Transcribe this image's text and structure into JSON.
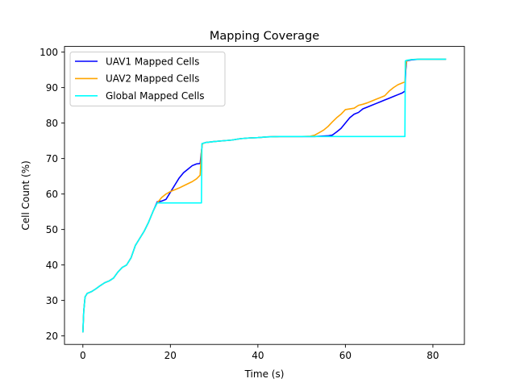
{
  "chart_data": {
    "type": "line",
    "title": "Mapping Coverage",
    "xlabel": "Time (s)",
    "ylabel": "Cell Count (%)",
    "xlim": [
      -4.2,
      87.2
    ],
    "ylim": [
      17.6,
      101.6
    ],
    "xticks": [
      0,
      20,
      40,
      60,
      80
    ],
    "yticks": [
      20,
      30,
      40,
      50,
      60,
      70,
      80,
      90,
      100
    ],
    "grid": false,
    "legend_position": "top-left",
    "series": [
      {
        "name": "UAV1 Mapped Cells",
        "color": "#0000ff",
        "points": [
          [
            0,
            21
          ],
          [
            0.2,
            27
          ],
          [
            0.5,
            31
          ],
          [
            1,
            32
          ],
          [
            2,
            32.5
          ],
          [
            3,
            33.3
          ],
          [
            4,
            34.2
          ],
          [
            5,
            35
          ],
          [
            6,
            35.5
          ],
          [
            7,
            36.3
          ],
          [
            8,
            38
          ],
          [
            9,
            39.3
          ],
          [
            10,
            40
          ],
          [
            11,
            42
          ],
          [
            12,
            45.5
          ],
          [
            13,
            47.5
          ],
          [
            14,
            49.5
          ],
          [
            15,
            52
          ],
          [
            16,
            55
          ],
          [
            17,
            57.8
          ],
          [
            18,
            58
          ],
          [
            19,
            58.5
          ],
          [
            20,
            60.5
          ],
          [
            21,
            62.5
          ],
          [
            22,
            64.5
          ],
          [
            23,
            66
          ],
          [
            24,
            67
          ],
          [
            25,
            68
          ],
          [
            26,
            68.5
          ],
          [
            26.8,
            68.6
          ],
          [
            27.1,
            72
          ],
          [
            27.3,
            74.2
          ],
          [
            28,
            74.5
          ],
          [
            30,
            74.8
          ],
          [
            32,
            75
          ],
          [
            34,
            75.2
          ],
          [
            36,
            75.6
          ],
          [
            38,
            75.8
          ],
          [
            40,
            75.9
          ],
          [
            42,
            76.1
          ],
          [
            45,
            76.2
          ],
          [
            50,
            76.2
          ],
          [
            53,
            76.2
          ],
          [
            56,
            76.4
          ],
          [
            57,
            76.6
          ],
          [
            58,
            77.5
          ],
          [
            59,
            78.5
          ],
          [
            60,
            80
          ],
          [
            61,
            81.5
          ],
          [
            62,
            82.5
          ],
          [
            63,
            83
          ],
          [
            64,
            84
          ],
          [
            65,
            84.5
          ],
          [
            66,
            85
          ],
          [
            67,
            85.5
          ],
          [
            68,
            86
          ],
          [
            69,
            86.5
          ],
          [
            70,
            87
          ],
          [
            71,
            87.5
          ],
          [
            72,
            88
          ],
          [
            73,
            88.5
          ],
          [
            73.6,
            89
          ],
          [
            73.8,
            95
          ],
          [
            74,
            97.5
          ],
          [
            75,
            97.8
          ],
          [
            77,
            98
          ],
          [
            80,
            98
          ],
          [
            83,
            98
          ]
        ]
      },
      {
        "name": "UAV2 Mapped Cells",
        "color": "#ffa500",
        "points": [
          [
            0,
            21
          ],
          [
            0.2,
            27
          ],
          [
            0.5,
            31
          ],
          [
            1,
            32
          ],
          [
            2,
            32.5
          ],
          [
            3,
            33.3
          ],
          [
            4,
            34.2
          ],
          [
            5,
            35
          ],
          [
            6,
            35.5
          ],
          [
            7,
            36.3
          ],
          [
            8,
            38
          ],
          [
            9,
            39.3
          ],
          [
            10,
            40
          ],
          [
            11,
            42
          ],
          [
            12,
            45.5
          ],
          [
            13,
            47.5
          ],
          [
            14,
            49.5
          ],
          [
            15,
            52
          ],
          [
            16,
            55
          ],
          [
            17,
            57.5
          ],
          [
            18,
            59
          ],
          [
            19,
            60
          ],
          [
            20,
            60.7
          ],
          [
            21,
            61.2
          ],
          [
            22,
            61.7
          ],
          [
            23,
            62.3
          ],
          [
            24,
            62.9
          ],
          [
            25,
            63.5
          ],
          [
            26,
            64.3
          ],
          [
            26.8,
            65.3
          ],
          [
            27.1,
            72
          ],
          [
            27.3,
            74.2
          ],
          [
            28,
            74.5
          ],
          [
            30,
            74.8
          ],
          [
            32,
            75
          ],
          [
            34,
            75.2
          ],
          [
            36,
            75.6
          ],
          [
            38,
            75.8
          ],
          [
            40,
            75.9
          ],
          [
            42,
            76.1
          ],
          [
            45,
            76.2
          ],
          [
            50,
            76.2
          ],
          [
            52,
            76.3
          ],
          [
            53,
            76.6
          ],
          [
            54,
            77.3
          ],
          [
            55,
            78
          ],
          [
            56,
            79
          ],
          [
            57,
            80.3
          ],
          [
            58,
            81.5
          ],
          [
            59,
            82.5
          ],
          [
            60,
            83.8
          ],
          [
            61,
            84
          ],
          [
            62,
            84.2
          ],
          [
            63,
            85
          ],
          [
            64,
            85.3
          ],
          [
            65,
            85.7
          ],
          [
            66,
            86.2
          ],
          [
            67,
            86.7
          ],
          [
            68,
            87.2
          ],
          [
            69,
            87.7
          ],
          [
            70,
            89
          ],
          [
            71,
            90
          ],
          [
            72,
            90.8
          ],
          [
            73,
            91.3
          ],
          [
            73.6,
            91.6
          ],
          [
            73.8,
            96
          ],
          [
            74,
            97.6
          ],
          [
            75,
            97.9
          ],
          [
            77,
            98
          ],
          [
            80,
            98
          ],
          [
            83,
            98
          ]
        ]
      },
      {
        "name": "Global Mapped Cells",
        "color": "#00ffff",
        "points": [
          [
            0,
            21
          ],
          [
            0.2,
            27
          ],
          [
            0.5,
            31
          ],
          [
            1,
            32
          ],
          [
            2,
            32.5
          ],
          [
            3,
            33.3
          ],
          [
            4,
            34.2
          ],
          [
            5,
            35
          ],
          [
            6,
            35.5
          ],
          [
            7,
            36.3
          ],
          [
            8,
            38
          ],
          [
            9,
            39.3
          ],
          [
            10,
            40
          ],
          [
            11,
            42
          ],
          [
            12,
            45.5
          ],
          [
            13,
            47.5
          ],
          [
            14,
            49.5
          ],
          [
            15,
            52
          ],
          [
            16,
            55
          ],
          [
            17,
            57.5
          ],
          [
            17.5,
            57.5
          ],
          [
            20,
            57.5
          ],
          [
            24,
            57.5
          ],
          [
            27,
            57.5
          ],
          [
            27.1,
            57.5
          ],
          [
            27.2,
            74.2
          ],
          [
            28,
            74.5
          ],
          [
            30,
            74.8
          ],
          [
            32,
            75
          ],
          [
            34,
            75.2
          ],
          [
            36,
            75.6
          ],
          [
            38,
            75.8
          ],
          [
            40,
            75.9
          ],
          [
            42,
            76.1
          ],
          [
            45,
            76.2
          ],
          [
            50,
            76.2
          ],
          [
            55,
            76.2
          ],
          [
            60,
            76.2
          ],
          [
            65,
            76.2
          ],
          [
            70,
            76.2
          ],
          [
            73.6,
            76.2
          ],
          [
            73.7,
            97.5
          ],
          [
            74,
            97.7
          ],
          [
            75,
            97.9
          ],
          [
            77,
            98
          ],
          [
            80,
            98
          ],
          [
            83,
            98
          ]
        ]
      }
    ]
  }
}
